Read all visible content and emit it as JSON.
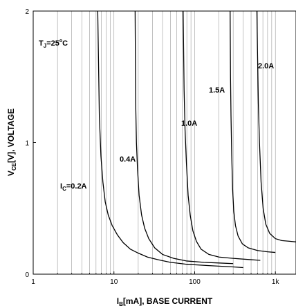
{
  "chart_data": {
    "type": "line",
    "x_scale": "log",
    "xlim": [
      1,
      1800
    ],
    "ylim": [
      0,
      2
    ],
    "grid": true,
    "xlabel": {
      "main": "I",
      "sub": "B",
      "rest": "[mA], BASE CURRENT"
    },
    "ylabel": {
      "main": "V",
      "sub": "CE",
      "rest": "[V], VOLTAGE"
    },
    "x_ticks": [
      {
        "value": 1,
        "label": "1"
      },
      {
        "value": 10,
        "label": "10"
      },
      {
        "value": 100,
        "label": "100"
      },
      {
        "value": 1000,
        "label": "1k"
      }
    ],
    "y_ticks": [
      {
        "value": 0,
        "label": "0"
      },
      {
        "value": 1,
        "label": "1"
      },
      {
        "value": 2,
        "label": "2"
      }
    ],
    "condition": {
      "main": "T",
      "sub": "J",
      "rest": "=25",
      "sup": "o",
      "tail": "C"
    },
    "series": [
      {
        "name": "0.2A",
        "points": [
          [
            6.3,
            2.0
          ],
          [
            6.6,
            1.2
          ],
          [
            6.9,
            0.9
          ],
          [
            7.3,
            0.7
          ],
          [
            7.8,
            0.55
          ],
          [
            8.5,
            0.45
          ],
          [
            9.5,
            0.37
          ],
          [
            11,
            0.3
          ],
          [
            13,
            0.24
          ],
          [
            16,
            0.19
          ],
          [
            20,
            0.16
          ],
          [
            26,
            0.13
          ],
          [
            35,
            0.11
          ],
          [
            50,
            0.09
          ],
          [
            80,
            0.075
          ],
          [
            150,
            0.065
          ],
          [
            300,
            0.055
          ],
          [
            400,
            0.05
          ]
        ]
      },
      {
        "name": "0.4A",
        "points": [
          [
            18.3,
            2.0
          ],
          [
            18.6,
            1.3
          ],
          [
            19,
            1.0
          ],
          [
            19.6,
            0.8
          ],
          [
            20.5,
            0.6
          ],
          [
            22,
            0.45
          ],
          [
            24,
            0.35
          ],
          [
            27,
            0.27
          ],
          [
            32,
            0.2
          ],
          [
            40,
            0.15
          ],
          [
            55,
            0.12
          ],
          [
            80,
            0.1
          ],
          [
            130,
            0.09
          ],
          [
            200,
            0.085
          ],
          [
            300,
            0.08
          ]
        ]
      },
      {
        "name": "1.0A",
        "points": [
          [
            72,
            2.0
          ],
          [
            74,
            1.4
          ],
          [
            76,
            1.1
          ],
          [
            79,
            0.85
          ],
          [
            83,
            0.6
          ],
          [
            88,
            0.45
          ],
          [
            95,
            0.33
          ],
          [
            105,
            0.25
          ],
          [
            120,
            0.19
          ],
          [
            150,
            0.15
          ],
          [
            200,
            0.13
          ],
          [
            300,
            0.12
          ],
          [
            500,
            0.11
          ],
          [
            650,
            0.105
          ]
        ]
      },
      {
        "name": "1.5A",
        "points": [
          [
            275,
            2.0
          ],
          [
            278,
            1.5
          ],
          [
            282,
            1.2
          ],
          [
            288,
            0.9
          ],
          [
            295,
            0.65
          ],
          [
            305,
            0.48
          ],
          [
            320,
            0.37
          ],
          [
            345,
            0.29
          ],
          [
            390,
            0.23
          ],
          [
            460,
            0.2
          ],
          [
            600,
            0.18
          ],
          [
            800,
            0.17
          ],
          [
            1000,
            0.165
          ]
        ]
      },
      {
        "name": "2.0A",
        "points": [
          [
            590,
            2.0
          ],
          [
            600,
            1.7
          ],
          [
            615,
            1.3
          ],
          [
            635,
            1.0
          ],
          [
            665,
            0.7
          ],
          [
            705,
            0.5
          ],
          [
            760,
            0.38
          ],
          [
            850,
            0.31
          ],
          [
            1000,
            0.27
          ],
          [
            1200,
            0.255
          ],
          [
            1500,
            0.25
          ],
          [
            1800,
            0.245
          ]
        ]
      }
    ],
    "series_labels": [
      {
        "prefix": "I",
        "sub": "C",
        "rest": "=0.2A"
      },
      {
        "prefix": "",
        "sub": "",
        "rest": "0.4A"
      },
      {
        "prefix": "",
        "sub": "",
        "rest": "1.0A"
      },
      {
        "prefix": "",
        "sub": "",
        "rest": "1.5A"
      },
      {
        "prefix": "",
        "sub": "",
        "rest": "2.0A"
      }
    ]
  }
}
